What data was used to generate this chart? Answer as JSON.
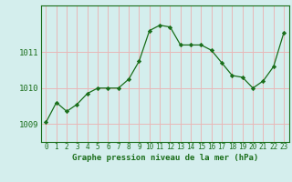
{
  "x": [
    0,
    1,
    2,
    3,
    4,
    5,
    6,
    7,
    8,
    9,
    10,
    11,
    12,
    13,
    14,
    15,
    16,
    17,
    18,
    19,
    20,
    21,
    22,
    23
  ],
  "y": [
    1009.05,
    1009.6,
    1009.35,
    1009.55,
    1009.85,
    1010.0,
    1010.0,
    1010.0,
    1010.25,
    1010.75,
    1011.6,
    1011.75,
    1011.7,
    1011.2,
    1011.2,
    1011.2,
    1011.05,
    1010.7,
    1010.35,
    1010.3,
    1010.0,
    1010.2,
    1010.6,
    1011.55
  ],
  "line_color": "#1a6e1a",
  "marker": "D",
  "marker_size": 2.2,
  "bg_color": "#d4eeed",
  "grid_color": "#e8b8b8",
  "axis_color": "#1a6e1a",
  "title": "Graphe pression niveau de la mer (hPa)",
  "title_color": "#1a6e1a",
  "ylim": [
    1008.5,
    1012.3
  ],
  "yticks": [
    1009,
    1010,
    1011
  ],
  "xticks": [
    0,
    1,
    2,
    3,
    4,
    5,
    6,
    7,
    8,
    9,
    10,
    11,
    12,
    13,
    14,
    15,
    16,
    17,
    18,
    19,
    20,
    21,
    22,
    23
  ],
  "tick_fontsize": 5.5,
  "title_fontsize": 6.5,
  "ytick_fontsize": 6.5
}
